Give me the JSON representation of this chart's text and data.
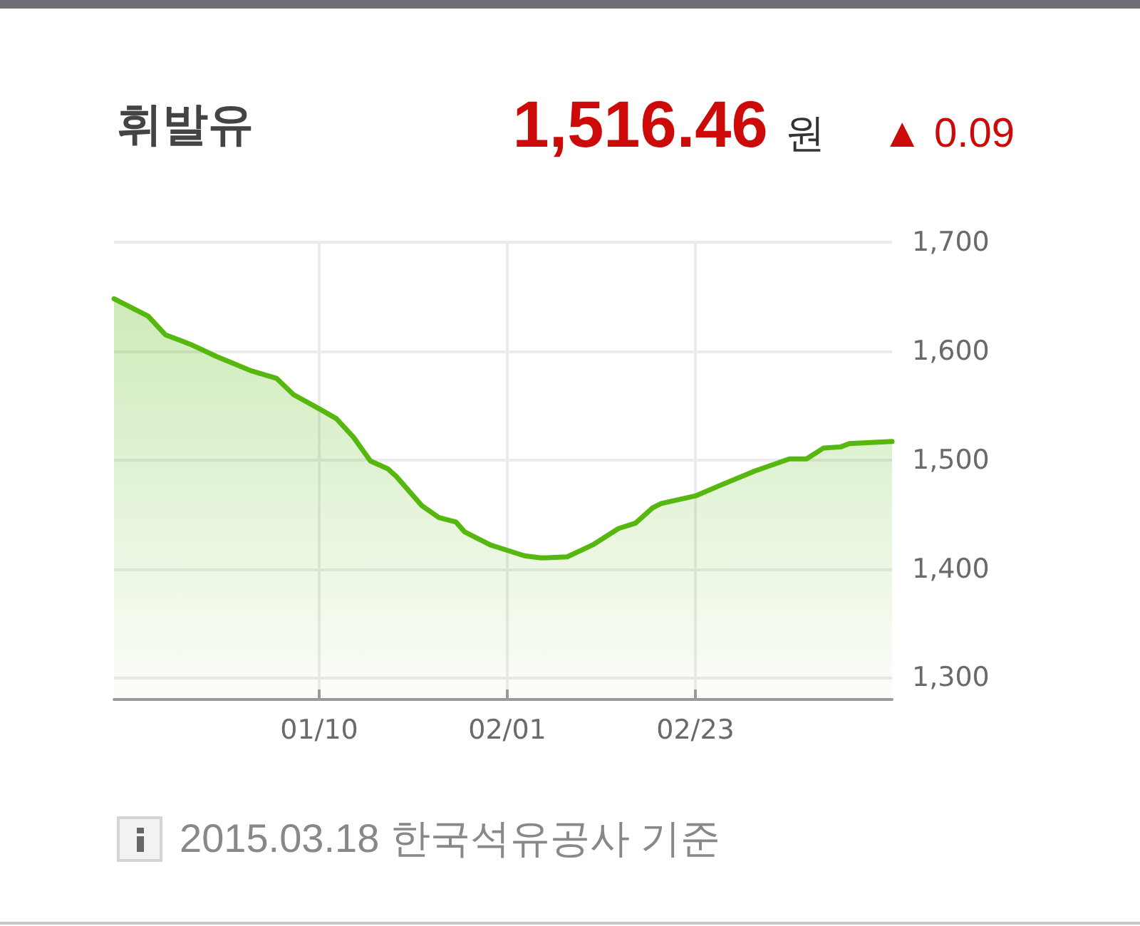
{
  "chart_data": {
    "type": "area",
    "title": "휘발유",
    "annotations": [
      "1,516.46",
      "원",
      "▲ 0.09",
      "2015.03.18 한국석유공사 기준"
    ],
    "x": [
      "2014-12-17",
      "2014-12-21",
      "2014-12-23",
      "2014-12-26",
      "2014-12-29",
      "2015-01-02",
      "2015-01-05",
      "2015-01-07",
      "2015-01-10",
      "2015-01-12",
      "2015-01-14",
      "2015-01-16",
      "2015-01-18",
      "2015-01-19",
      "2015-01-20",
      "2015-01-22",
      "2015-01-24",
      "2015-01-26",
      "2015-01-27",
      "2015-01-30",
      "2015-02-03",
      "2015-02-05",
      "2015-02-08",
      "2015-02-11",
      "2015-02-14",
      "2015-02-16",
      "2015-02-18",
      "2015-02-19",
      "2015-02-23",
      "2015-02-26",
      "2015-03-02",
      "2015-03-06",
      "2015-03-08",
      "2015-03-10",
      "2015-03-12",
      "2015-03-13",
      "2015-03-18"
    ],
    "series": [
      {
        "color": "#56b80f",
        "values": [
          1648,
          1632,
          1615,
          1606,
          1595,
          1582,
          1575,
          1560,
          1547,
          1538,
          1521,
          1499,
          1492,
          1485,
          1476,
          1458,
          1447,
          1443,
          1434,
          1422,
          1412,
          1410,
          1411,
          1422,
          1437,
          1442,
          1456,
          1460,
          1467,
          1477,
          1490,
          1501,
          1501,
          1511,
          1512,
          1515,
          1517
        ]
      }
    ],
    "xlim": [
      "2014-12-17",
      "2015-03-18"
    ],
    "xticks": [
      {
        "value": "2015-01-10",
        "label": "01/10"
      },
      {
        "value": "2015-02-01",
        "label": "02/01"
      },
      {
        "value": "2015-02-23",
        "label": "02/23"
      }
    ],
    "ylim": [
      1280,
      1700
    ],
    "yticks": [
      {
        "value": 1300,
        "label": "1,300"
      },
      {
        "value": 1400,
        "label": "1,400"
      },
      {
        "value": 1500,
        "label": "1,500"
      },
      {
        "value": 1600,
        "label": "1,600"
      },
      {
        "value": 1700,
        "label": "1,700"
      }
    ],
    "grid": true,
    "marker": "none"
  }
}
